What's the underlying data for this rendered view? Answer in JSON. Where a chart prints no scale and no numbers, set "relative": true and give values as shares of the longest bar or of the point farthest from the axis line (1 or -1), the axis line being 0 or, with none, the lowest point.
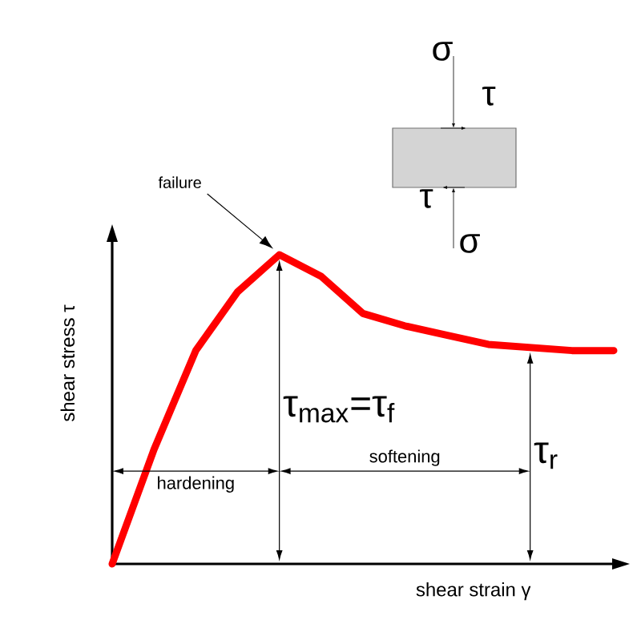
{
  "chart_data": {
    "type": "line",
    "relative": true,
    "tick_labels": false,
    "xlabel": "shear strain  γ",
    "ylabel": "shear stress   τ",
    "categories": [
      null,
      null,
      null,
      null,
      null,
      null,
      null,
      null,
      null,
      null,
      null,
      null,
      null
    ],
    "series": [
      {
        "color": "#ff0000",
        "values": [
          0,
          0.37,
          0.69,
          0.88,
          1,
          0.93,
          0.81,
          0.77,
          0.74,
          0.71,
          0.7,
          0.69,
          0.69
        ]
      }
    ],
    "annotations": [
      "failure",
      "τ$_{max}$=τ$_{f}$",
      "τ$_{r}$",
      "hardening",
      "softening",
      "σ",
      "τ",
      "τ",
      "σ"
    ]
  }
}
